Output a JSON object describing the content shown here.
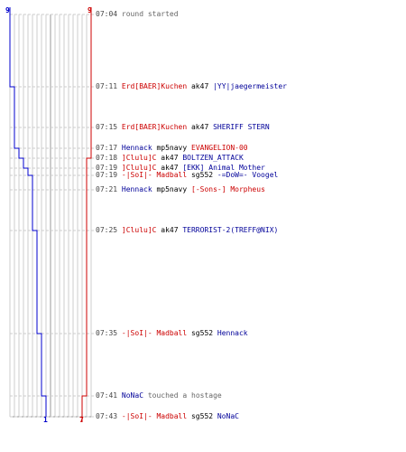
{
  "colors": {
    "team_blue": "#0000cc",
    "team_red": "#cc0000",
    "name_blue": "#000099",
    "name_red": "#cc0000",
    "weapon": "#000000",
    "note": "#666666",
    "grid": "#cccccc"
  },
  "scoreboard": {
    "blue_start": "9",
    "red_start": "9",
    "blue_end": "1",
    "red_end": "7"
  },
  "events": [
    {
      "time": "07:04",
      "parts": [
        {
          "text": "round started",
          "color": "note"
        }
      ]
    },
    {
      "time": "07:11",
      "parts": [
        {
          "text": "Erd[BAER]Kuchen",
          "color": "red"
        },
        {
          "text": " ak47 ",
          "color": "weapon"
        },
        {
          "text": "|YY|jaegermeister",
          "color": "blue"
        }
      ]
    },
    {
      "time": "07:15",
      "parts": [
        {
          "text": "Erd[BAER]Kuchen",
          "color": "red"
        },
        {
          "text": " ak47 ",
          "color": "weapon"
        },
        {
          "text": "SHERIFF STERN",
          "color": "blue"
        }
      ]
    },
    {
      "time": "07:17",
      "parts": [
        {
          "text": "Hennack",
          "color": "blue"
        },
        {
          "text": " mp5navy ",
          "color": "weapon"
        },
        {
          "text": "EVANGELION-00",
          "color": "red"
        }
      ]
    },
    {
      "time": "07:18",
      "parts": [
        {
          "text": "]Clulu]C",
          "color": "red"
        },
        {
          "text": " ak47 ",
          "color": "weapon"
        },
        {
          "text": "BOLTZEN_ATTACK",
          "color": "blue"
        }
      ]
    },
    {
      "time": "07:19",
      "parts": [
        {
          "text": "]Clulu]C",
          "color": "red"
        },
        {
          "text": " ak47 ",
          "color": "weapon"
        },
        {
          "text": "[EKK] Animal Mother",
          "color": "blue"
        }
      ]
    },
    {
      "time": "07:19",
      "parts": [
        {
          "text": "-|SoI|- Madball",
          "color": "red"
        },
        {
          "text": " sg552 ",
          "color": "weapon"
        },
        {
          "text": "-=DoW=- Voogel",
          "color": "blue"
        }
      ]
    },
    {
      "time": "07:21",
      "parts": [
        {
          "text": "Hennack",
          "color": "blue"
        },
        {
          "text": " mp5navy ",
          "color": "weapon"
        },
        {
          "text": "[-Sons-] Morpheus",
          "color": "red"
        }
      ]
    },
    {
      "time": "07:25",
      "parts": [
        {
          "text": "]Clulu]C",
          "color": "red"
        },
        {
          "text": " ak47 ",
          "color": "weapon"
        },
        {
          "text": "TERRORIST-2(TREFF@NIX)",
          "color": "blue"
        }
      ]
    },
    {
      "time": "07:35",
      "parts": [
        {
          "text": "-|SoI|- Madball",
          "color": "red"
        },
        {
          "text": " sg552 ",
          "color": "weapon"
        },
        {
          "text": "Hennack",
          "color": "blue"
        }
      ]
    },
    {
      "time": "07:41",
      "parts": [
        {
          "text": "NoNaC",
          "color": "blue"
        },
        {
          "text": " touched a hostage",
          "color": "note"
        }
      ]
    },
    {
      "time": "07:43",
      "parts": [
        {
          "text": "-|SoI|- Madball",
          "color": "red"
        },
        {
          "text": " sg552 ",
          "color": "weapon"
        },
        {
          "text": "NoNaC",
          "color": "blue"
        }
      ]
    }
  ]
}
